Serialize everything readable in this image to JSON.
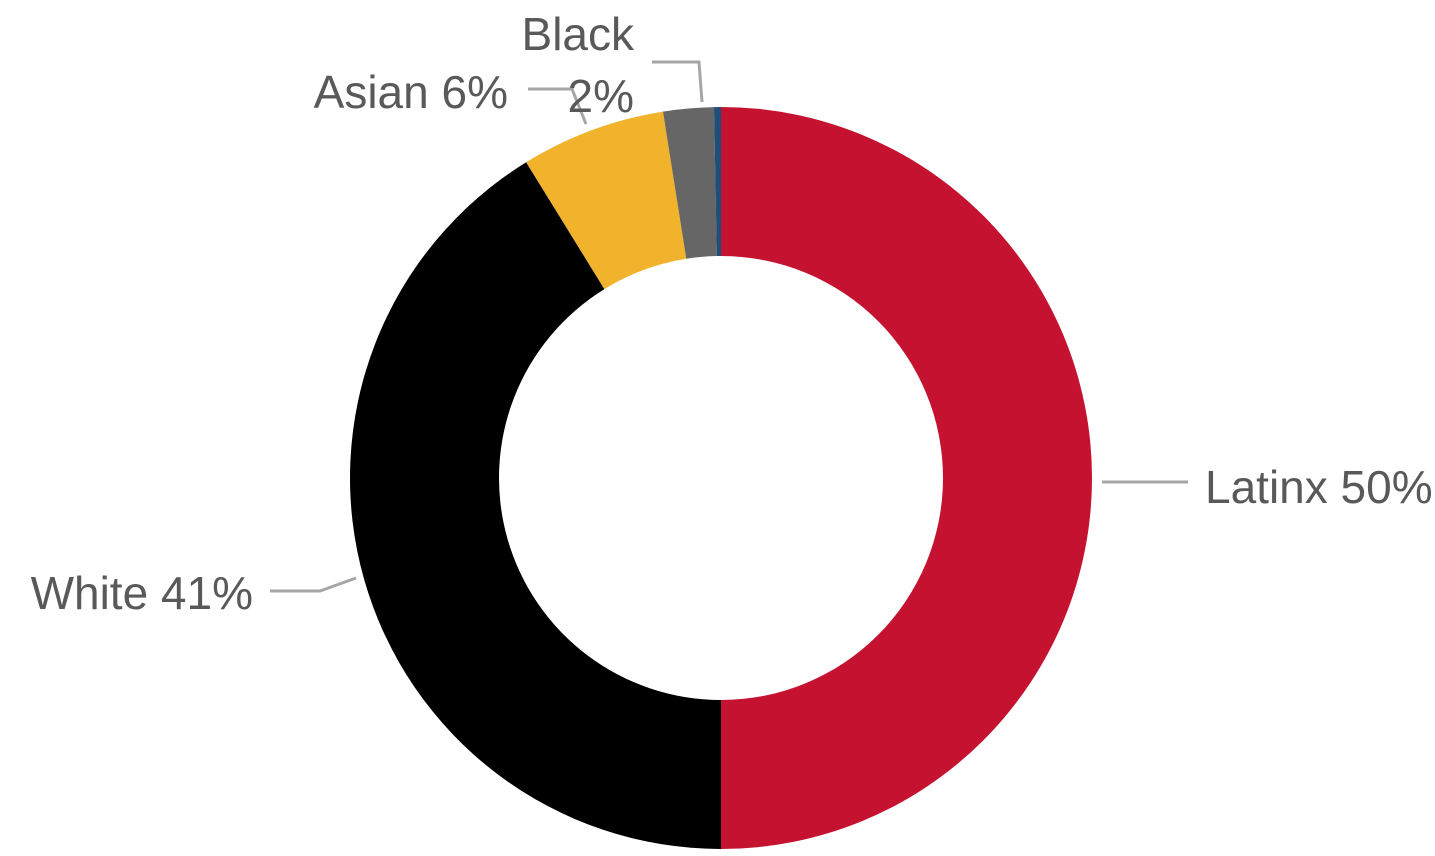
{
  "chart_data": {
    "type": "pie",
    "style": "donut",
    "title": "",
    "slices": [
      {
        "label": "Latinx",
        "value_label": "50%",
        "value": 50.0,
        "color": "#C41230"
      },
      {
        "label": "White",
        "value_label": "41%",
        "value": 41.2,
        "color": "#000000"
      },
      {
        "label": "Asian",
        "value_label": "6%",
        "value": 6.3,
        "color": "#F0B32B"
      },
      {
        "label": "Black",
        "value_label": "2%",
        "value": 2.2,
        "color": "#666666"
      },
      {
        "label": "",
        "value_label": "",
        "value": 0.3,
        "color": "#1F4E79"
      }
    ],
    "legend": "none",
    "data_labels": "outside-with-leader-lines"
  }
}
